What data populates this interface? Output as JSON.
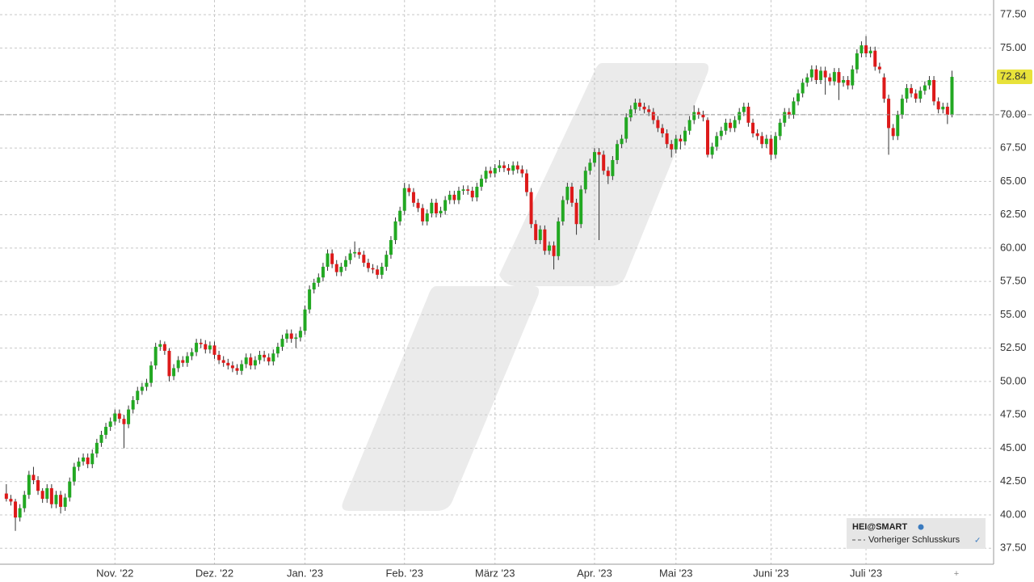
{
  "chart_data": {
    "type": "candlestick",
    "symbol": "HEI@SMART",
    "legend": {
      "symbol": "HEI@SMART",
      "entries": [
        "Vorheriger Schlusskurs"
      ],
      "position": "lower right"
    },
    "up_color": "#22a822",
    "down_color": "#dd1a1a",
    "grid": true,
    "ylim": [
      36.3,
      78.6
    ],
    "xlim": [
      -1.4,
      218.2
    ],
    "yticks": [
      {
        "value": 37.5,
        "label": "37.50"
      },
      {
        "value": 40,
        "label": "40.00"
      },
      {
        "value": 42.5,
        "label": "42.50"
      },
      {
        "value": 45,
        "label": "45.00"
      },
      {
        "value": 47.5,
        "label": "47.50"
      },
      {
        "value": 50,
        "label": "50.00"
      },
      {
        "value": 52.5,
        "label": "52.50"
      },
      {
        "value": 55,
        "label": "55.00"
      },
      {
        "value": 57.5,
        "label": "57.50"
      },
      {
        "value": 60,
        "label": "60.00"
      },
      {
        "value": 62.5,
        "label": "62.50"
      },
      {
        "value": 65,
        "label": "65.00"
      },
      {
        "value": 67.5,
        "label": "67.50"
      },
      {
        "value": 70,
        "label": "70.00"
      },
      {
        "value": 72.5,
        "label": "72.50"
      },
      {
        "value": 75,
        "label": "75.00"
      },
      {
        "value": 77.5,
        "label": "77.50"
      }
    ],
    "xticks": [
      {
        "value": 24,
        "label": "Nov. '22"
      },
      {
        "value": 46,
        "label": "Dez. '22"
      },
      {
        "value": 66,
        "label": "Jan. '23"
      },
      {
        "value": 88,
        "label": "Feb. '23"
      },
      {
        "value": 108,
        "label": "März '23"
      },
      {
        "value": 130,
        "label": "Apr. '23"
      },
      {
        "value": 148,
        "label": "Mai '23"
      },
      {
        "value": 169,
        "label": "Juni '23"
      },
      {
        "value": 190,
        "label": "Juli '23"
      }
    ],
    "last_price": 72.84,
    "last_price_color": "#e8e23a",
    "previous_close": 70.0,
    "candles": [
      [
        41.6,
        42.3,
        41.0,
        41.2
      ],
      [
        41.2,
        41.5,
        40.7,
        41.0
      ],
      [
        41.0,
        41.2,
        38.8,
        39.8
      ],
      [
        39.8,
        40.8,
        39.5,
        40.5
      ],
      [
        40.5,
        41.8,
        40.2,
        41.5
      ],
      [
        41.5,
        43.3,
        41.2,
        43.0
      ],
      [
        43.0,
        43.6,
        42.3,
        42.6
      ],
      [
        42.6,
        42.9,
        41.5,
        41.8
      ],
      [
        41.8,
        42.0,
        40.9,
        41.2
      ],
      [
        41.2,
        42.3,
        40.9,
        42.0
      ],
      [
        42.0,
        42.3,
        40.5,
        40.8
      ],
      [
        40.8,
        41.8,
        40.5,
        41.5
      ],
      [
        41.5,
        41.8,
        40.1,
        40.6
      ],
      [
        40.6,
        41.6,
        40.3,
        41.3
      ],
      [
        41.3,
        42.8,
        41.0,
        42.5
      ],
      [
        42.5,
        43.9,
        42.2,
        43.6
      ],
      [
        43.6,
        44.3,
        43.3,
        44.0
      ],
      [
        44.0,
        44.6,
        43.7,
        44.3
      ],
      [
        44.3,
        44.6,
        43.5,
        43.8
      ],
      [
        43.8,
        44.9,
        43.5,
        44.6
      ],
      [
        44.6,
        45.7,
        44.3,
        45.4
      ],
      [
        45.4,
        46.3,
        45.1,
        46.0
      ],
      [
        46.0,
        46.9,
        45.7,
        46.6
      ],
      [
        46.6,
        47.3,
        46.3,
        47.0
      ],
      [
        47.0,
        47.9,
        46.7,
        47.6
      ],
      [
        47.6,
        47.9,
        46.9,
        47.2
      ],
      [
        47.2,
        47.5,
        45.0,
        46.8
      ],
      [
        46.8,
        48.2,
        46.5,
        47.9
      ],
      [
        47.9,
        48.9,
        47.6,
        48.6
      ],
      [
        48.6,
        49.6,
        48.3,
        49.3
      ],
      [
        49.3,
        49.9,
        49.0,
        49.6
      ],
      [
        49.6,
        50.2,
        49.3,
        49.9
      ],
      [
        49.9,
        51.5,
        49.6,
        51.2
      ],
      [
        51.2,
        52.9,
        50.9,
        52.6
      ],
      [
        52.6,
        53.1,
        52.3,
        52.8
      ],
      [
        52.8,
        53.0,
        52.0,
        52.3
      ],
      [
        52.3,
        52.5,
        50.0,
        50.4
      ],
      [
        50.4,
        51.3,
        50.1,
        51.0
      ],
      [
        51.0,
        51.9,
        50.7,
        51.6
      ],
      [
        51.6,
        51.9,
        51.1,
        51.4
      ],
      [
        51.4,
        52.2,
        51.1,
        51.9
      ],
      [
        51.9,
        52.5,
        51.6,
        52.2
      ],
      [
        52.2,
        53.2,
        51.9,
        52.9
      ],
      [
        52.9,
        53.2,
        52.5,
        52.8
      ],
      [
        52.8,
        53.1,
        52.1,
        52.4
      ],
      [
        52.4,
        53.0,
        52.1,
        52.7
      ],
      [
        52.7,
        53.0,
        51.7,
        52.0
      ],
      [
        52.0,
        52.3,
        51.3,
        51.6
      ],
      [
        51.6,
        51.9,
        51.1,
        51.4
      ],
      [
        51.4,
        51.7,
        50.9,
        51.2
      ],
      [
        51.2,
        51.5,
        50.7,
        51.0
      ],
      [
        51.0,
        51.3,
        50.5,
        50.8
      ],
      [
        50.8,
        51.6,
        50.5,
        51.3
      ],
      [
        51.3,
        52.1,
        51.0,
        51.8
      ],
      [
        51.8,
        52.1,
        50.9,
        51.2
      ],
      [
        51.2,
        51.9,
        50.9,
        51.6
      ],
      [
        51.6,
        52.3,
        51.3,
        52.0
      ],
      [
        52.0,
        52.3,
        51.5,
        51.8
      ],
      [
        51.8,
        52.1,
        51.2,
        51.5
      ],
      [
        51.5,
        52.4,
        51.2,
        52.1
      ],
      [
        52.1,
        52.9,
        51.8,
        52.6
      ],
      [
        52.6,
        53.5,
        52.3,
        53.2
      ],
      [
        53.2,
        53.9,
        52.9,
        53.6
      ],
      [
        53.6,
        53.9,
        52.9,
        53.2
      ],
      [
        53.2,
        53.6,
        52.5,
        53.3
      ],
      [
        53.3,
        54.1,
        53.0,
        53.8
      ],
      [
        53.8,
        55.7,
        53.5,
        55.4
      ],
      [
        55.4,
        57.2,
        55.1,
        56.9
      ],
      [
        56.9,
        57.7,
        56.6,
        57.4
      ],
      [
        57.4,
        58.1,
        57.1,
        57.8
      ],
      [
        57.8,
        58.9,
        57.5,
        58.6
      ],
      [
        58.6,
        59.9,
        58.3,
        59.6
      ],
      [
        59.6,
        59.9,
        58.5,
        58.8
      ],
      [
        58.8,
        59.1,
        57.9,
        58.2
      ],
      [
        58.2,
        58.9,
        57.9,
        58.6
      ],
      [
        58.6,
        59.4,
        58.3,
        59.1
      ],
      [
        59.1,
        59.9,
        58.8,
        59.6
      ],
      [
        59.6,
        60.5,
        59.3,
        59.7
      ],
      [
        59.7,
        60.0,
        59.2,
        59.5
      ],
      [
        59.5,
        59.8,
        58.6,
        58.9
      ],
      [
        58.9,
        59.2,
        58.2,
        58.5
      ],
      [
        58.5,
        58.8,
        58.1,
        58.4
      ],
      [
        58.4,
        58.7,
        57.7,
        58.0
      ],
      [
        58.0,
        58.9,
        57.7,
        58.6
      ],
      [
        58.6,
        59.8,
        58.3,
        59.5
      ],
      [
        59.5,
        60.9,
        59.2,
        60.6
      ],
      [
        60.6,
        62.3,
        60.3,
        62.0
      ],
      [
        62.0,
        63.1,
        61.7,
        62.8
      ],
      [
        62.8,
        64.9,
        62.5,
        64.5
      ],
      [
        64.5,
        64.8,
        63.9,
        64.2
      ],
      [
        64.2,
        64.5,
        63.1,
        63.4
      ],
      [
        63.4,
        63.7,
        62.7,
        63.0
      ],
      [
        63.0,
        63.3,
        61.7,
        62.0
      ],
      [
        62.0,
        62.9,
        61.7,
        62.6
      ],
      [
        62.6,
        63.7,
        62.3,
        63.4
      ],
      [
        63.4,
        63.7,
        62.3,
        62.6
      ],
      [
        62.6,
        63.1,
        62.3,
        62.8
      ],
      [
        62.8,
        63.9,
        62.5,
        63.6
      ],
      [
        63.6,
        64.3,
        63.3,
        64.0
      ],
      [
        64.0,
        64.3,
        63.3,
        63.6
      ],
      [
        63.6,
        64.6,
        63.3,
        64.3
      ],
      [
        64.3,
        64.7,
        64.0,
        64.4
      ],
      [
        64.4,
        64.7,
        64.0,
        64.3
      ],
      [
        64.3,
        64.6,
        63.5,
        63.8
      ],
      [
        63.8,
        64.9,
        63.5,
        64.6
      ],
      [
        64.6,
        65.5,
        64.3,
        65.2
      ],
      [
        65.2,
        66.1,
        64.9,
        65.8
      ],
      [
        65.8,
        66.1,
        65.3,
        65.6
      ],
      [
        65.6,
        66.3,
        65.3,
        66.0
      ],
      [
        66.0,
        66.6,
        65.7,
        66.2
      ],
      [
        66.2,
        66.5,
        65.7,
        66.0
      ],
      [
        66.0,
        66.3,
        65.5,
        65.8
      ],
      [
        65.8,
        66.5,
        65.5,
        66.2
      ],
      [
        66.2,
        66.5,
        65.6,
        65.9
      ],
      [
        65.9,
        66.2,
        65.3,
        65.6
      ],
      [
        65.6,
        65.9,
        63.9,
        64.2
      ],
      [
        64.2,
        64.5,
        61.5,
        61.8
      ],
      [
        61.8,
        62.1,
        60.3,
        60.6
      ],
      [
        60.6,
        61.7,
        60.3,
        61.4
      ],
      [
        61.4,
        61.7,
        59.5,
        59.8
      ],
      [
        59.8,
        60.5,
        59.5,
        60.2
      ],
      [
        60.2,
        60.5,
        58.4,
        59.4
      ],
      [
        59.4,
        62.3,
        59.1,
        62.0
      ],
      [
        62.0,
        63.9,
        61.7,
        63.6
      ],
      [
        63.6,
        64.9,
        63.3,
        64.6
      ],
      [
        64.6,
        64.9,
        63.1,
        63.4
      ],
      [
        63.4,
        63.7,
        61.0,
        61.8
      ],
      [
        61.8,
        64.7,
        61.5,
        64.4
      ],
      [
        64.4,
        66.1,
        64.1,
        65.8
      ],
      [
        65.8,
        66.7,
        65.5,
        66.4
      ],
      [
        66.4,
        67.5,
        66.1,
        67.2
      ],
      [
        67.2,
        67.5,
        60.6,
        67.0
      ],
      [
        67.0,
        67.3,
        65.5,
        65.8
      ],
      [
        65.8,
        66.1,
        64.8,
        65.4
      ],
      [
        65.4,
        66.9,
        65.1,
        66.6
      ],
      [
        66.6,
        68.1,
        66.3,
        67.8
      ],
      [
        67.8,
        68.5,
        67.5,
        68.2
      ],
      [
        68.2,
        70.1,
        67.9,
        69.8
      ],
      [
        69.8,
        70.7,
        69.5,
        70.4
      ],
      [
        70.4,
        71.2,
        70.1,
        70.9
      ],
      [
        70.9,
        71.2,
        70.3,
        70.6
      ],
      [
        70.6,
        70.9,
        70.1,
        70.4
      ],
      [
        70.4,
        70.7,
        69.9,
        70.2
      ],
      [
        70.2,
        70.5,
        69.3,
        69.6
      ],
      [
        69.6,
        69.9,
        68.7,
        69.0
      ],
      [
        69.0,
        69.3,
        68.3,
        68.6
      ],
      [
        68.6,
        68.9,
        67.5,
        67.8
      ],
      [
        67.8,
        68.1,
        66.8,
        67.4
      ],
      [
        67.4,
        68.5,
        67.1,
        68.2
      ],
      [
        68.2,
        68.5,
        67.4,
        68.0
      ],
      [
        68.0,
        69.1,
        67.7,
        68.8
      ],
      [
        68.8,
        69.9,
        68.5,
        69.6
      ],
      [
        69.6,
        70.7,
        69.3,
        70.2
      ],
      [
        70.2,
        70.5,
        69.7,
        70.0
      ],
      [
        70.0,
        70.3,
        69.5,
        69.8
      ],
      [
        69.6,
        69.8,
        66.8,
        67.0
      ],
      [
        67.0,
        67.9,
        66.7,
        67.6
      ],
      [
        67.6,
        68.7,
        67.3,
        68.4
      ],
      [
        68.4,
        69.1,
        68.1,
        68.8
      ],
      [
        68.8,
        69.7,
        68.5,
        69.4
      ],
      [
        69.4,
        69.7,
        68.7,
        69.0
      ],
      [
        69.0,
        69.9,
        68.7,
        69.6
      ],
      [
        69.6,
        70.5,
        69.3,
        70.2
      ],
      [
        70.2,
        70.9,
        69.9,
        70.6
      ],
      [
        70.6,
        70.9,
        69.1,
        69.4
      ],
      [
        69.4,
        69.7,
        68.3,
        68.6
      ],
      [
        68.6,
        68.9,
        68.1,
        68.4
      ],
      [
        68.4,
        68.7,
        67.5,
        67.8
      ],
      [
        67.8,
        68.5,
        67.5,
        68.2
      ],
      [
        68.2,
        68.5,
        66.6,
        67.0
      ],
      [
        67.0,
        68.7,
        66.7,
        68.4
      ],
      [
        68.4,
        69.7,
        68.1,
        69.4
      ],
      [
        69.4,
        70.5,
        69.1,
        70.2
      ],
      [
        70.2,
        70.5,
        69.7,
        70.0
      ],
      [
        70.0,
        71.3,
        69.7,
        71.0
      ],
      [
        71.0,
        71.9,
        70.7,
        71.6
      ],
      [
        71.6,
        72.7,
        71.3,
        72.4
      ],
      [
        72.4,
        73.1,
        72.1,
        72.8
      ],
      [
        72.8,
        73.7,
        72.5,
        73.4
      ],
      [
        73.4,
        73.7,
        72.3,
        72.6
      ],
      [
        72.6,
        73.6,
        72.3,
        73.3
      ],
      [
        73.3,
        73.6,
        71.5,
        72.8
      ],
      [
        72.8,
        73.1,
        72.2,
        72.5
      ],
      [
        72.5,
        73.5,
        72.2,
        73.2
      ],
      [
        73.2,
        73.5,
        71.1,
        72.4
      ],
      [
        72.4,
        72.9,
        72.1,
        72.6
      ],
      [
        72.6,
        72.9,
        71.9,
        72.2
      ],
      [
        72.2,
        73.7,
        71.9,
        73.4
      ],
      [
        73.4,
        74.9,
        73.1,
        74.6
      ],
      [
        74.6,
        75.5,
        74.3,
        75.2
      ],
      [
        75.2,
        75.9,
        74.3,
        74.6
      ],
      [
        74.6,
        75.1,
        74.3,
        74.8
      ],
      [
        74.8,
        75.1,
        73.3,
        73.6
      ],
      [
        73.6,
        73.9,
        73.1,
        73.4
      ],
      [
        72.8,
        73.1,
        70.9,
        71.2
      ],
      [
        71.2,
        71.5,
        67.0,
        69.0
      ],
      [
        69.0,
        69.3,
        68.1,
        68.4
      ],
      [
        68.4,
        70.3,
        68.1,
        70.0
      ],
      [
        70.0,
        71.5,
        69.7,
        71.2
      ],
      [
        71.2,
        72.3,
        70.9,
        72.0
      ],
      [
        72.0,
        72.3,
        71.3,
        71.6
      ],
      [
        71.6,
        71.9,
        70.9,
        71.2
      ],
      [
        71.2,
        72.1,
        70.9,
        71.8
      ],
      [
        71.8,
        72.5,
        71.5,
        72.2
      ],
      [
        72.2,
        72.9,
        71.9,
        72.6
      ],
      [
        72.6,
        72.9,
        70.7,
        71.0
      ],
      [
        71.0,
        71.3,
        70.1,
        70.4
      ],
      [
        70.4,
        70.9,
        70.1,
        70.6
      ],
      [
        70.6,
        70.9,
        69.3,
        70.0
      ],
      [
        70.0,
        73.3,
        69.8,
        72.84
      ]
    ]
  }
}
